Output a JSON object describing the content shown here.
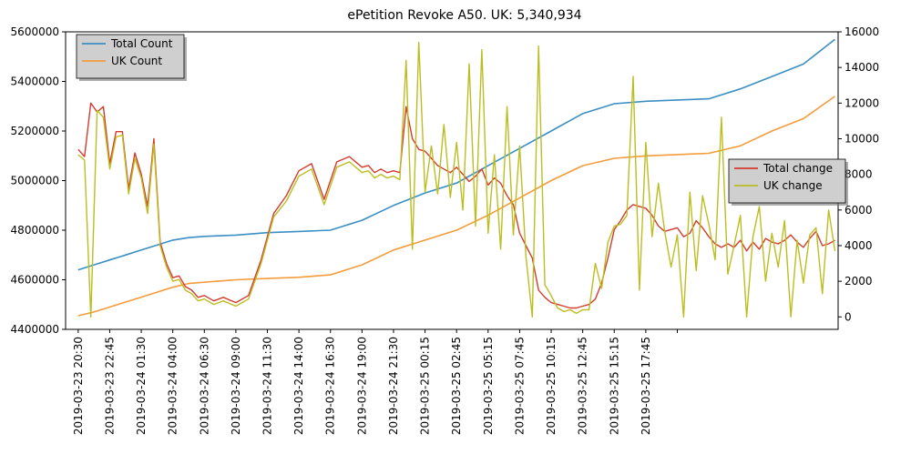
{
  "chart_data": {
    "type": "line",
    "title": "ePetition Revoke A50. UK:    5,340,934",
    "x_tick_labels": [
      "2019-03-23 20:30",
      "2019-03-23 22:45",
      "2019-03-24 01:30",
      "2019-03-24 04:00",
      "2019-03-24 06:30",
      "2019-03-24 09:00",
      "2019-03-24 11:30",
      "2019-03-24 14:00",
      "2019-03-24 16:30",
      "2019-03-24 19:00",
      "2019-03-24 21:30",
      "2019-03-25 00:15",
      "2019-03-25 02:45",
      "2019-03-25 05:15",
      "2019-03-25 07:45",
      "2019-03-25 10:15",
      "2019-03-25 12:45",
      "2019-03-25 15:15",
      "2019-03-25 17:45"
    ],
    "x_range": [
      -0.4,
      24.1
    ],
    "y_left": {
      "range": [
        4400000,
        5600000
      ],
      "ticks": [
        4400000,
        4600000,
        4800000,
        5000000,
        5200000,
        5400000,
        5600000
      ]
    },
    "y_right": {
      "range": [
        -700,
        16000
      ],
      "ticks": [
        0,
        2000,
        4000,
        6000,
        8000,
        10000,
        12000,
        14000,
        16000
      ]
    },
    "legend_left": {
      "position": "upper-left",
      "entries": [
        "Total Count",
        "UK Count"
      ]
    },
    "legend_right": {
      "position": "center-right",
      "entries": [
        "Total change",
        "UK change"
      ]
    },
    "series": [
      {
        "name": "Total Count",
        "axis": "left",
        "color": "#3a8fc4",
        "x": [
          0,
          0.5,
          1,
          1.5,
          2,
          2.5,
          3,
          3.5,
          4,
          5,
          6,
          7,
          8,
          9,
          10,
          11,
          12,
          13,
          14,
          15,
          16,
          17,
          18,
          19,
          20,
          21,
          22,
          23,
          24
        ],
        "y": [
          4640000,
          4660000,
          4680000,
          4700000,
          4720000,
          4740000,
          4760000,
          4770000,
          4775000,
          4780000,
          4790000,
          4795000,
          4800000,
          4840000,
          4900000,
          4950000,
          4990000,
          5060000,
          5130000,
          5200000,
          5270000,
          5310000,
          5320000,
          5325000,
          5330000,
          5370000,
          5420000,
          5470000,
          5570000
        ]
      },
      {
        "name": "UK Count",
        "axis": "left",
        "color": "#f39c3c",
        "x": [
          0,
          0.5,
          1,
          1.5,
          2,
          2.5,
          3,
          3.5,
          4,
          5,
          6,
          7,
          8,
          9,
          10,
          11,
          12,
          13,
          14,
          15,
          16,
          17,
          18,
          19,
          20,
          21,
          22,
          23,
          24
        ],
        "y": [
          4455000,
          4470000,
          4490000,
          4510000,
          4530000,
          4550000,
          4570000,
          4585000,
          4590000,
          4600000,
          4605000,
          4610000,
          4620000,
          4660000,
          4720000,
          4760000,
          4800000,
          4860000,
          4930000,
          5000000,
          5060000,
          5090000,
          5100000,
          5105000,
          5110000,
          5140000,
          5200000,
          5250000,
          5340000
        ]
      },
      {
        "name": "Total change",
        "axis": "right",
        "color": "#d23c2e",
        "x": [
          0,
          0.2,
          0.4,
          0.6,
          0.8,
          1,
          1.2,
          1.4,
          1.6,
          1.8,
          2,
          2.2,
          2.4,
          2.6,
          2.8,
          3,
          3.2,
          3.4,
          3.6,
          3.8,
          4,
          4.3,
          4.6,
          5,
          5.4,
          5.8,
          6.2,
          6.6,
          7,
          7.4,
          7.8,
          8.2,
          8.6,
          9,
          9.2,
          9.4,
          9.6,
          9.8,
          10,
          10.2,
          10.4,
          10.6,
          10.8,
          11,
          11.2,
          11.4,
          11.6,
          11.8,
          12,
          12.2,
          12.4,
          12.6,
          12.8,
          13,
          13.2,
          13.4,
          13.6,
          13.8,
          14,
          14.2,
          14.4,
          14.6,
          14.8,
          15,
          15.2,
          15.4,
          15.6,
          15.8,
          16,
          16.2,
          16.4,
          16.6,
          16.8,
          17,
          17.2,
          17.4,
          17.6,
          17.8,
          18,
          18.2,
          18.4,
          18.6,
          18.8,
          19,
          19.2,
          19.4,
          19.6,
          19.8,
          20,
          20.2,
          20.4,
          20.6,
          20.8,
          21,
          21.2,
          21.4,
          21.6,
          21.8,
          22,
          22.2,
          22.4,
          22.6,
          22.8,
          23,
          23.2,
          23.4,
          23.6,
          23.8,
          24
        ],
        "y": [
          9400,
          9000,
          12000,
          11500,
          11800,
          8600,
          10400,
          10400,
          7200,
          9200,
          8000,
          6200,
          10000,
          4200,
          3000,
          2200,
          2300,
          1700,
          1500,
          1100,
          1200,
          900,
          1100,
          800,
          1200,
          3200,
          5800,
          6800,
          8200,
          8600,
          6600,
          8700,
          9000,
          8400,
          8500,
          8100,
          8300,
          8100,
          8200,
          8100,
          11800,
          10000,
          9400,
          9300,
          8900,
          8500,
          8300,
          8100,
          8400,
          8000,
          7600,
          7900,
          8300,
          7400,
          7800,
          7500,
          6800,
          6300,
          4700,
          4000,
          3300,
          1500,
          1100,
          800,
          700,
          600,
          500,
          500,
          600,
          700,
          1000,
          1900,
          3300,
          4900,
          5400,
          6000,
          6300,
          6200,
          6100,
          5700,
          5100,
          4800,
          4900,
          5000,
          4500,
          4700,
          5400,
          5000,
          4500,
          4100,
          3900,
          4100,
          3900,
          4300,
          3700,
          4200,
          3800,
          4400,
          4200,
          4100,
          4300,
          4600,
          4200,
          3900,
          4400,
          4800,
          4000,
          4100,
          4300
        ],
        "note": "x in tick-index units; series drawn on secondary axis"
      },
      {
        "name": "UK change",
        "axis": "right",
        "color": "#bcbd22",
        "x": [
          0,
          0.2,
          0.4,
          0.6,
          0.8,
          1,
          1.2,
          1.4,
          1.6,
          1.8,
          2,
          2.2,
          2.4,
          2.6,
          2.8,
          3,
          3.2,
          3.4,
          3.6,
          3.8,
          4,
          4.3,
          4.6,
          5,
          5.4,
          5.8,
          6.2,
          6.6,
          7,
          7.4,
          7.8,
          8.2,
          8.6,
          9,
          9.2,
          9.4,
          9.6,
          9.8,
          10,
          10.2,
          10.4,
          10.6,
          10.8,
          11,
          11.2,
          11.4,
          11.6,
          11.8,
          12,
          12.2,
          12.4,
          12.6,
          12.8,
          13,
          13.2,
          13.4,
          13.6,
          13.8,
          14,
          14.2,
          14.4,
          14.6,
          14.8,
          15,
          15.2,
          15.4,
          15.6,
          15.8,
          16,
          16.2,
          16.4,
          16.6,
          16.8,
          17,
          17.2,
          17.4,
          17.6,
          17.8,
          18,
          18.2,
          18.4,
          18.6,
          18.8,
          19,
          19.2,
          19.4,
          19.6,
          19.8,
          20,
          20.2,
          20.4,
          20.6,
          20.8,
          21,
          21.2,
          21.4,
          21.6,
          21.8,
          22,
          22.2,
          22.4,
          22.6,
          22.8,
          23,
          23.2,
          23.4,
          23.6,
          23.8,
          24
        ],
        "y": [
          9100,
          8800,
          0,
          11600,
          11200,
          8300,
          10100,
          10200,
          6900,
          8900,
          7800,
          5800,
          9700,
          4000,
          2800,
          2000,
          2100,
          1500,
          1300,
          900,
          1000,
          700,
          900,
          600,
          1000,
          3000,
          5600,
          6500,
          7900,
          8300,
          6300,
          8400,
          8700,
          8100,
          8200,
          7800,
          8000,
          7800,
          7900,
          7700,
          14400,
          3800,
          15400,
          7000,
          9600,
          6900,
          10800,
          6700,
          9800,
          6000,
          14200,
          5100,
          15000,
          4700,
          9100,
          3800,
          11800,
          4600,
          9600,
          3400,
          0,
          15200,
          1800,
          1200,
          500,
          300,
          400,
          200,
          400,
          400,
          3000,
          1600,
          4200,
          5100,
          5200,
          5700,
          13500,
          1500,
          9800,
          4500,
          7500,
          4800,
          2800,
          4600,
          0,
          7000,
          2600,
          6800,
          5200,
          3200,
          11200,
          2400,
          4000,
          5700,
          0,
          4500,
          6200,
          2000,
          4700,
          2800,
          5400,
          0,
          4300,
          1900,
          4600,
          5000,
          1300,
          6000,
          3700
        ],
        "note": "x in tick-index units; series drawn on secondary axis"
      }
    ]
  }
}
